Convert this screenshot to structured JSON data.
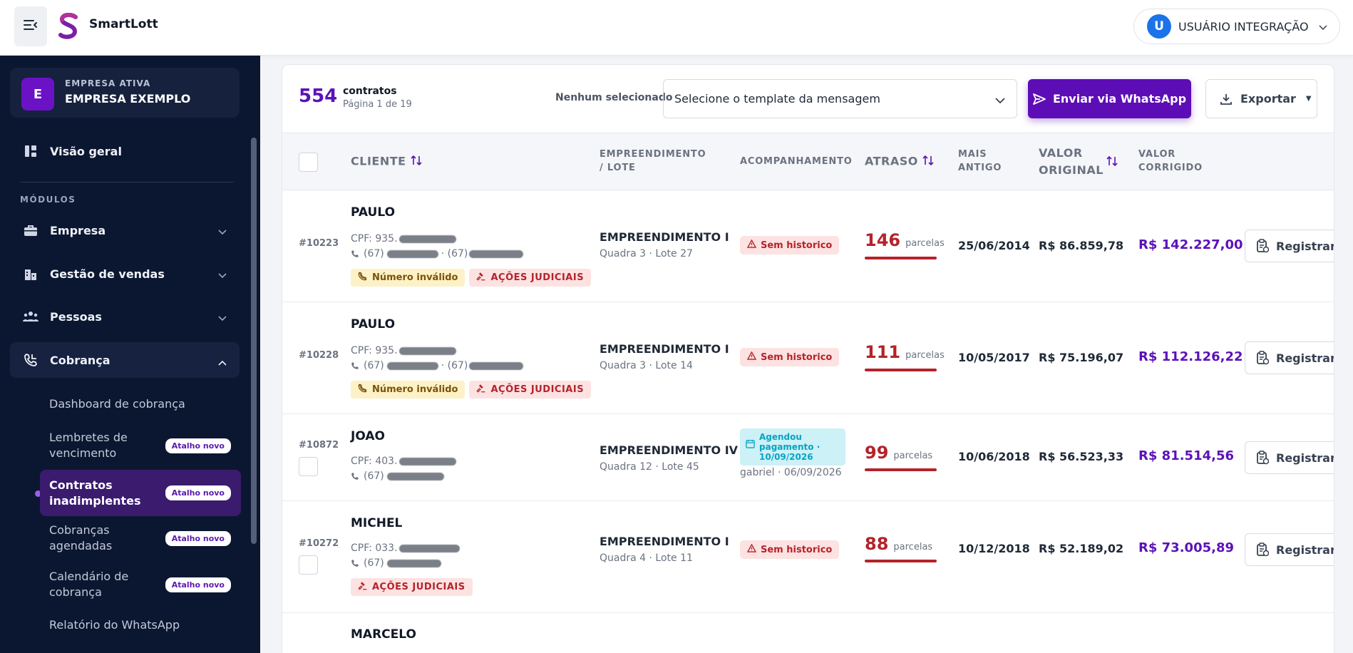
{
  "header": {
    "brand": "SmartLott",
    "user_initial": "U",
    "user_name": "USUÁRIO INTEGRAÇÃO"
  },
  "colors": {
    "brand_purple": "#5d0db6",
    "sidebar_bg": "#0b1730",
    "danger": "#b4232a",
    "info": "#08a3c4"
  },
  "sidebar": {
    "company_initial": "E",
    "company_label": "EMPRESA ATIVA",
    "company_name": "EMPRESA EXEMPLO",
    "overview": "Visão geral",
    "section_label": "MÓDULOS",
    "modules": [
      {
        "label": "Empresa",
        "icon": "briefcase-icon"
      },
      {
        "label": "Gestão de vendas",
        "icon": "buildings-icon"
      },
      {
        "label": "Pessoas",
        "icon": "people-icon"
      },
      {
        "label": "Cobrança",
        "icon": "phone-icon"
      }
    ],
    "sub_items": [
      {
        "label": "Dashboard de cobrança",
        "badge": ""
      },
      {
        "label": "Lembretes de vencimento",
        "badge": "Atalho novo"
      },
      {
        "label": "Contratos inadimplentes",
        "badge": "Atalho novo"
      },
      {
        "label": "Cobranças agendadas",
        "badge": "Atalho novo"
      },
      {
        "label": "Calendário de cobrança",
        "badge": "Atalho novo"
      },
      {
        "label": "Relatório do WhatsApp",
        "badge": ""
      }
    ]
  },
  "toolbar": {
    "count": "554",
    "count_label": "contratos",
    "page_label": "Página 1 de 19",
    "selection": "Nenhum selecionado",
    "template_placeholder": "Selecione o template da mensagem",
    "whatsapp_label": "Enviar via WhatsApp",
    "export_label": "Exportar"
  },
  "table": {
    "headers": {
      "client": "CLIENTE",
      "project": "EMPREENDIMENTO / LOTE",
      "followup": "ACOMPANHAMENTO",
      "delay": "ATRASO",
      "oldest": "MAIS ANTIGO",
      "original": "VALOR ORIGINAL",
      "corrected": "VALOR CORRIGIDO"
    },
    "rows": [
      {
        "id": "#10223",
        "name": "PAULO",
        "cpf": "CPF: 935.",
        "phone1": "(67)",
        "phone_sep": "· (67)",
        "tag_invalid": "Número inválido",
        "tag_judicial": "AÇÕES JUDICIAIS",
        "project": "EMPREENDIMENTO I",
        "lot": "Quadra 3 · Lote 27",
        "status": "Sem historico",
        "delay": "146",
        "delay_unit": "parcelas",
        "oldest": "25/06/2014",
        "original": "R$ 86.859,78",
        "corrected": "R$ 142.227,00",
        "action": "Registrar cobrança"
      },
      {
        "id": "#10228",
        "name": "PAULO",
        "cpf": "CPF: 935.",
        "phone1": "(67)",
        "phone_sep": "· (67)",
        "tag_invalid": "Número inválido",
        "tag_judicial": "AÇÕES JUDICIAIS",
        "project": "EMPREENDIMENTO I",
        "lot": "Quadra 3 · Lote 14",
        "status": "Sem historico",
        "delay": "111",
        "delay_unit": "parcelas",
        "oldest": "10/05/2017",
        "original": "R$ 75.196,07",
        "corrected": "R$ 112.126,22",
        "action": "Registrar cobrança"
      },
      {
        "id": "#10872",
        "name": "JOAO",
        "cpf": "CPF: 403.",
        "phone1": "(67)",
        "project": "EMPREENDIMENTO IV",
        "lot": "Quadra 12 · Lote 45",
        "status": "Agendou pagamento · 10/09/2026",
        "status_note": "gabriel · 06/09/2026",
        "delay": "99",
        "delay_unit": "parcelas",
        "oldest": "10/06/2018",
        "original": "R$ 56.523,33",
        "corrected": "R$ 81.514,56",
        "action": "Registrar cobrança"
      },
      {
        "id": "#10272",
        "name": "MICHEL",
        "cpf": "CPF: 033.",
        "phone1": "(67)",
        "tag_judicial": "AÇÕES JUDICIAIS",
        "project": "EMPREENDIMENTO I",
        "lot": "Quadra 4 · Lote 11",
        "status": "Sem historico",
        "delay": "88",
        "delay_unit": "parcelas",
        "oldest": "10/12/2018",
        "original": "R$ 52.189,02",
        "corrected": "R$ 73.005,89",
        "action": "Registrar cobrança"
      },
      {
        "name": "MARCELO"
      }
    ]
  }
}
